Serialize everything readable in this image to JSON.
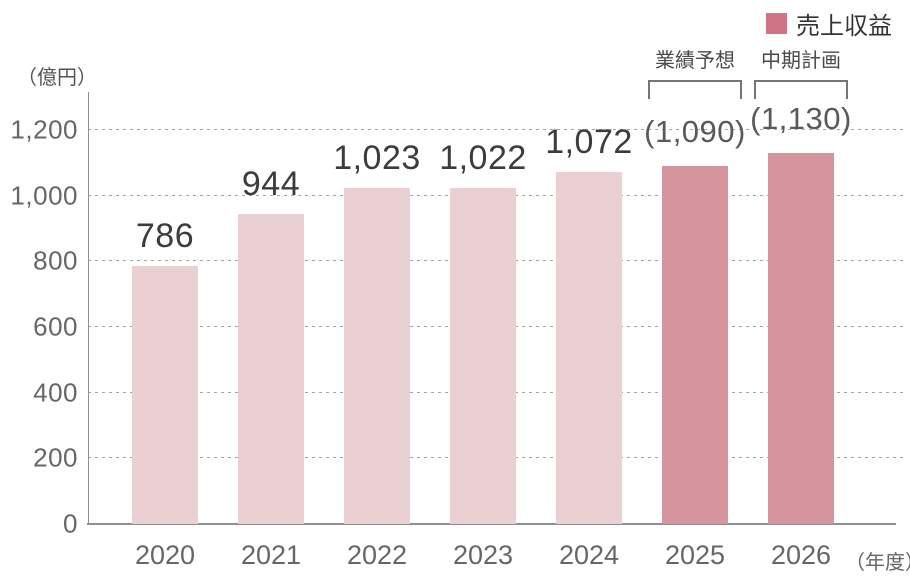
{
  "legend": {
    "label": "売上収益",
    "color": "#ce7486"
  },
  "unit_label": "（億円）",
  "xaxis_suffix": "（年度）",
  "annotations": [
    {
      "label": "業績予想",
      "category": "2025"
    },
    {
      "label": "中期計画",
      "category": "2026"
    }
  ],
  "chart_data": {
    "type": "bar",
    "title": "売上収益",
    "categories": [
      "2020",
      "2021",
      "2022",
      "2023",
      "2024",
      "2025",
      "2026"
    ],
    "values": [
      786,
      944,
      1023,
      1022,
      1072,
      1090,
      1130
    ],
    "value_labels": [
      "786",
      "944",
      "1,023",
      "1,022",
      "1,072",
      "(1,090)",
      "(1,130)"
    ],
    "bar_types": [
      "actual",
      "actual",
      "actual",
      "actual",
      "actual",
      "forecast",
      "forecast"
    ],
    "bar_colors": {
      "actual": "#eacfd3",
      "forecast": "#d6949e"
    },
    "xlabel": "年度",
    "ylabel": "億円",
    "ylim": [
      0,
      1200
    ],
    "ytick_interval": 200,
    "yticks": [
      "0",
      "200",
      "400",
      "600",
      "800",
      "1,000",
      "1,200"
    ],
    "grid": "horizontal-dotted",
    "legend_position": "top-right"
  }
}
